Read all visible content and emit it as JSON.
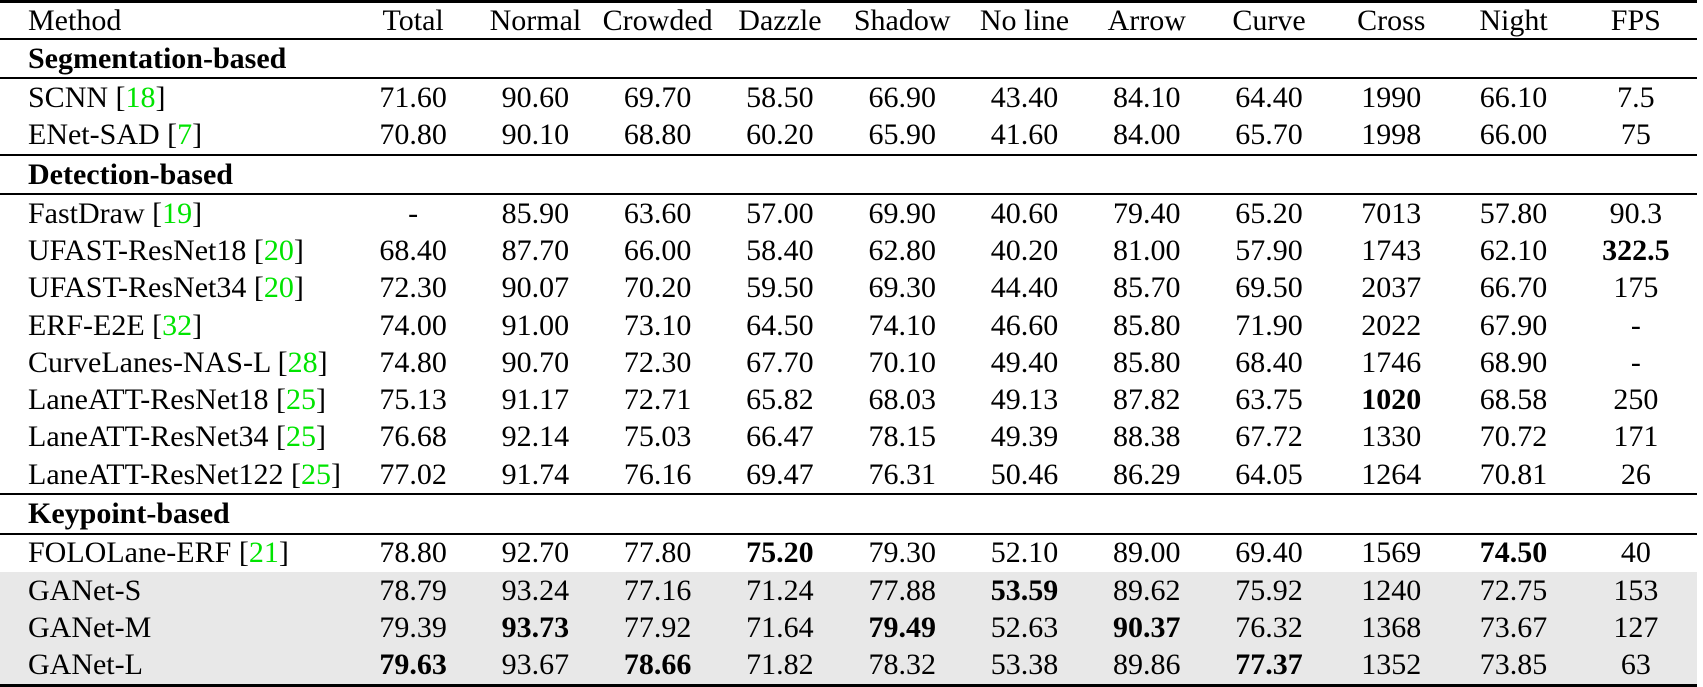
{
  "colors": {
    "citation_green": "#00e400",
    "highlight_gray": "#e8e8e8",
    "text": "#000000",
    "background": "#ffffff"
  },
  "table": {
    "columns": [
      "Method",
      "Total",
      "Normal",
      "Crowded",
      "Dazzle",
      "Shadow",
      "No line",
      "Arrow",
      "Curve",
      "Cross",
      "Night",
      "FPS"
    ],
    "sections": [
      {
        "header": "Segmentation-based",
        "rows": [
          {
            "method": "SCNN",
            "cite": "18",
            "highlight": false,
            "cells": [
              "71.60",
              "90.60",
              "69.70",
              "58.50",
              "66.90",
              "43.40",
              "84.10",
              "64.40",
              "1990",
              "66.10",
              "7.5"
            ],
            "bold": []
          },
          {
            "method": "ENet-SAD",
            "cite": "7",
            "highlight": false,
            "cells": [
              "70.80",
              "90.10",
              "68.80",
              "60.20",
              "65.90",
              "41.60",
              "84.00",
              "65.70",
              "1998",
              "66.00",
              "75"
            ],
            "bold": []
          }
        ]
      },
      {
        "header": "Detection-based",
        "rows": [
          {
            "method": "FastDraw",
            "cite": "19",
            "highlight": false,
            "cells": [
              "-",
              "85.90",
              "63.60",
              "57.00",
              "69.90",
              "40.60",
              "79.40",
              "65.20",
              "7013",
              "57.80",
              "90.3"
            ],
            "bold": []
          },
          {
            "method": "UFAST-ResNet18",
            "cite": "20",
            "highlight": false,
            "cells": [
              "68.40",
              "87.70",
              "66.00",
              "58.40",
              "62.80",
              "40.20",
              "81.00",
              "57.90",
              "1743",
              "62.10",
              "322.5"
            ],
            "bold": [
              10
            ]
          },
          {
            "method": "UFAST-ResNet34",
            "cite": "20",
            "highlight": false,
            "cells": [
              "72.30",
              "90.07",
              "70.20",
              "59.50",
              "69.30",
              "44.40",
              "85.70",
              "69.50",
              "2037",
              "66.70",
              "175"
            ],
            "bold": []
          },
          {
            "method": "ERF-E2E",
            "cite": "32",
            "highlight": false,
            "cells": [
              "74.00",
              "91.00",
              "73.10",
              "64.50",
              "74.10",
              "46.60",
              "85.80",
              "71.90",
              "2022",
              "67.90",
              "-"
            ],
            "bold": []
          },
          {
            "method": "CurveLanes-NAS-L",
            "cite": "28",
            "highlight": false,
            "cells": [
              "74.80",
              "90.70",
              "72.30",
              "67.70",
              "70.10",
              "49.40",
              "85.80",
              "68.40",
              "1746",
              "68.90",
              "-"
            ],
            "bold": []
          },
          {
            "method": "LaneATT-ResNet18",
            "cite": "25",
            "highlight": false,
            "cells": [
              "75.13",
              "91.17",
              "72.71",
              "65.82",
              "68.03",
              "49.13",
              "87.82",
              "63.75",
              "1020",
              "68.58",
              "250"
            ],
            "bold": [
              8
            ]
          },
          {
            "method": "LaneATT-ResNet34",
            "cite": "25",
            "highlight": false,
            "cells": [
              "76.68",
              "92.14",
              "75.03",
              "66.47",
              "78.15",
              "49.39",
              "88.38",
              "67.72",
              "1330",
              "70.72",
              "171"
            ],
            "bold": []
          },
          {
            "method": "LaneATT-ResNet122",
            "cite": "25",
            "highlight": false,
            "cells": [
              "77.02",
              "91.74",
              "76.16",
              "69.47",
              "76.31",
              "50.46",
              "86.29",
              "64.05",
              "1264",
              "70.81",
              "26"
            ],
            "bold": []
          }
        ]
      },
      {
        "header": "Keypoint-based",
        "rows": [
          {
            "method": "FOLOLane-ERF",
            "cite": "21",
            "highlight": false,
            "cells": [
              "78.80",
              "92.70",
              "77.80",
              "75.20",
              "79.30",
              "52.10",
              "89.00",
              "69.40",
              "1569",
              "74.50",
              "40"
            ],
            "bold": [
              3,
              9
            ]
          },
          {
            "method": "GANet-S",
            "cite": null,
            "highlight": true,
            "cells": [
              "78.79",
              "93.24",
              "77.16",
              "71.24",
              "77.88",
              "53.59",
              "89.62",
              "75.92",
              "1240",
              "72.75",
              "153"
            ],
            "bold": [
              5
            ]
          },
          {
            "method": "GANet-M",
            "cite": null,
            "highlight": true,
            "cells": [
              "79.39",
              "93.73",
              "77.92",
              "71.64",
              "79.49",
              "52.63",
              "90.37",
              "76.32",
              "1368",
              "73.67",
              "127"
            ],
            "bold": [
              1,
              4,
              6
            ]
          },
          {
            "method": "GANet-L",
            "cite": null,
            "highlight": true,
            "cells": [
              "79.63",
              "93.67",
              "78.66",
              "71.82",
              "78.32",
              "53.38",
              "89.86",
              "77.37",
              "1352",
              "73.85",
              "63"
            ],
            "bold": [
              0,
              2,
              7
            ]
          }
        ]
      }
    ]
  }
}
